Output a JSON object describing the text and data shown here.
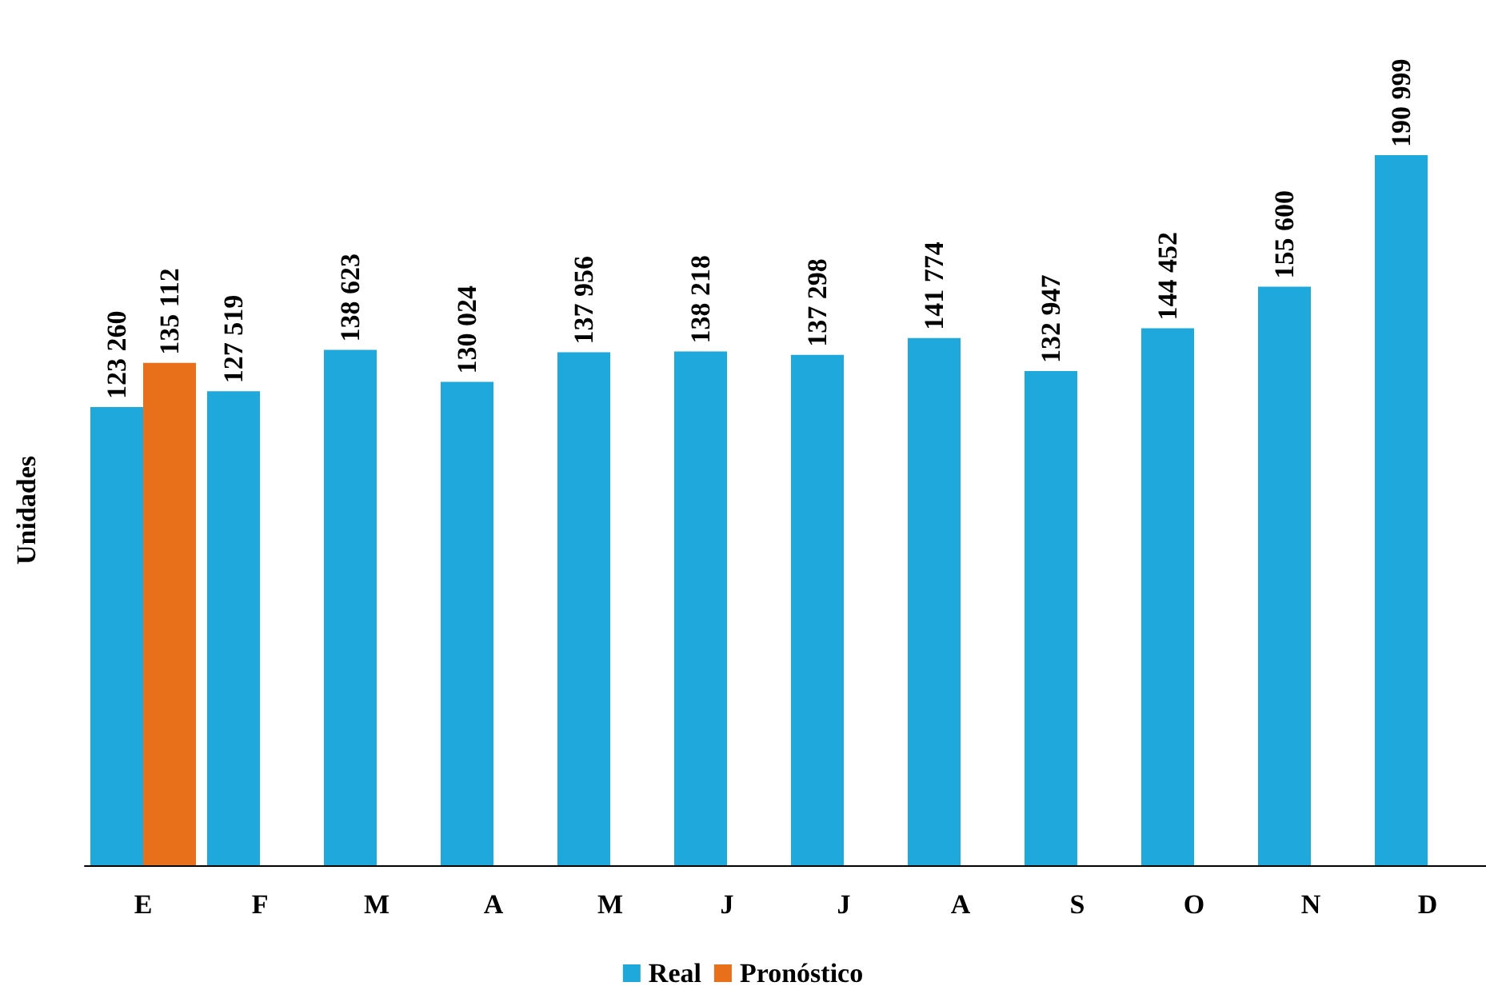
{
  "chart_data": {
    "type": "bar",
    "ylabel": "Unidades",
    "categories": [
      "E",
      "F",
      "M",
      "A",
      "M",
      "J",
      "J",
      "A",
      "S",
      "O",
      "N",
      "D"
    ],
    "series": [
      {
        "name": "Real",
        "color": "#1ea8dc",
        "values": [
          123260,
          127519,
          138623,
          130024,
          137956,
          138218,
          137298,
          141774,
          132947,
          144452,
          155600,
          190999
        ],
        "value_labels": [
          "123 260",
          "127 519",
          "138 623",
          "130 024",
          "137 956",
          "138 218",
          "137 298",
          "141 774",
          "132 947",
          "144 452",
          "155 600",
          "190 999"
        ]
      },
      {
        "name": "Pronóstico",
        "color": "#e8701a",
        "values": [
          135112,
          null,
          null,
          null,
          null,
          null,
          null,
          null,
          null,
          null,
          null,
          null
        ],
        "value_labels": [
          "135 112",
          null,
          null,
          null,
          null,
          null,
          null,
          null,
          null,
          null,
          null,
          null
        ]
      }
    ],
    "legend": "bottom",
    "grid": false
  }
}
